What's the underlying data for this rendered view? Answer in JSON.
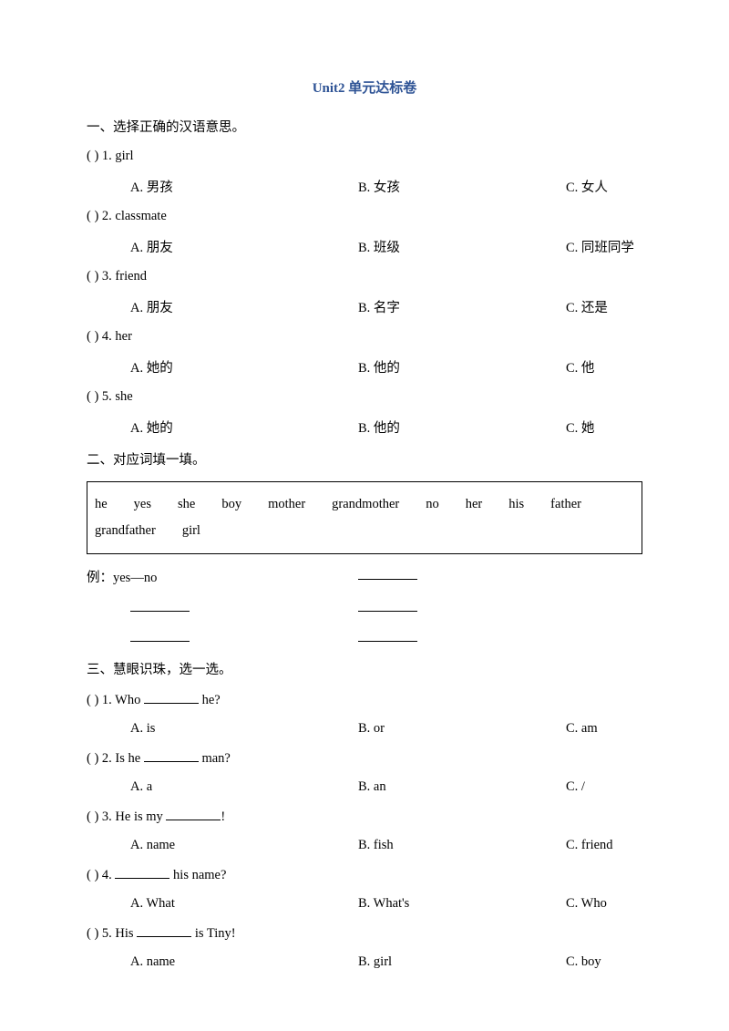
{
  "title": "Unit2  单元达标卷",
  "section1": {
    "heading": "一、选择正确的汉语意思。",
    "questions": [
      {
        "stem": "(    ) 1. girl",
        "a": "A.  男孩",
        "b": "B.  女孩",
        "c": "C.  女人"
      },
      {
        "stem": "(    ) 2. classmate",
        "a": "A.  朋友",
        "b": "B.  班级",
        "c": "C.  同班同学"
      },
      {
        "stem": "(    ) 3. friend",
        "a": "A.  朋友",
        "b": "B.  名字",
        "c": "C.  还是"
      },
      {
        "stem": "(    ) 4. her",
        "a": "A.  她的",
        "b": "B.  他的",
        "c": "C.  他"
      },
      {
        "stem": "(    ) 5. she",
        "a": "A.  她的",
        "b": "B.  他的",
        "c": "C.  她"
      }
    ]
  },
  "section2": {
    "heading": "二、对应词填一填。",
    "wordbox": "he  yes  she  boy  mother  grandmother  no  her  his  father  grandfather  girl",
    "example": "例：yes—no"
  },
  "section3": {
    "heading": "三、慧眼识珠，选一选。",
    "questions": [
      {
        "pre": "(    ) 1. Who ",
        "post": " he?",
        "a": "A. is",
        "b": "B. or",
        "c": "C. am"
      },
      {
        "pre": "(    ) 2. Is he ",
        "post": " man?",
        "a": "A. a",
        "b": "B. an",
        "c": "C. /"
      },
      {
        "pre": "(    ) 3. He is my ",
        "post": "!",
        "a": "A. name",
        "b": "B. fish",
        "c": "C. friend"
      },
      {
        "pre": "(    ) 4. ",
        "post": " his name?",
        "a": "A. What",
        "b": "B. What's",
        "c": "C. Who"
      },
      {
        "pre": "(    ) 5. His ",
        "post": " is Tiny!",
        "a": "A. name",
        "b": "B. girl",
        "c": "C. boy"
      }
    ]
  }
}
